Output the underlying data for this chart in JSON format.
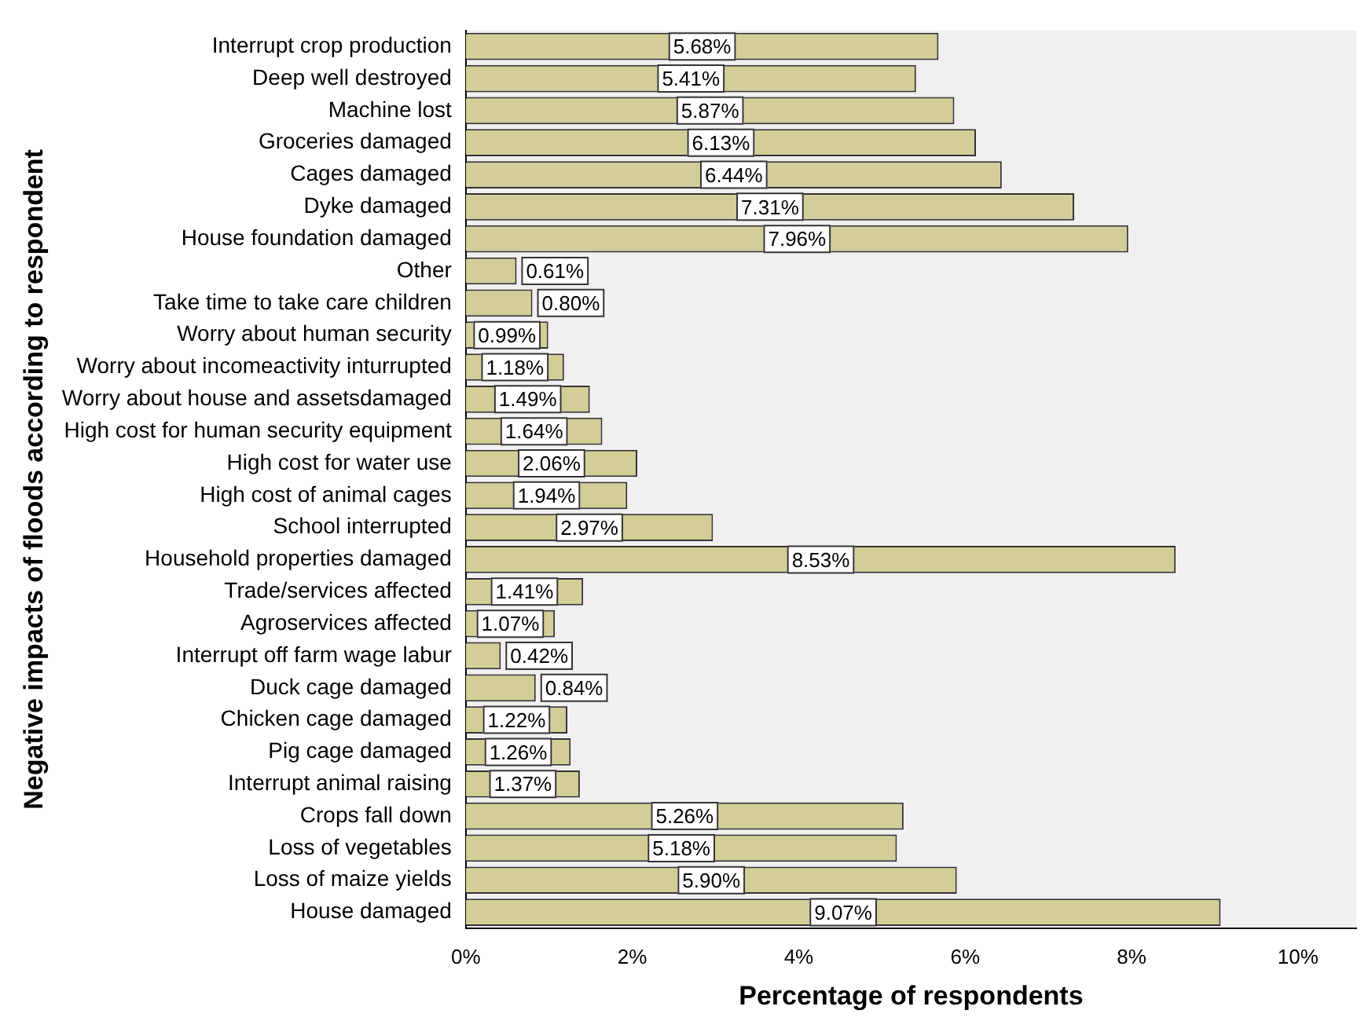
{
  "chart_data": {
    "type": "bar",
    "orientation": "horizontal",
    "xlabel": "Percentage of respondents",
    "ylabel": "Negative impacts of floods according to respondent",
    "categories": [
      "Interrupt crop production",
      "Deep well destroyed",
      "Machine lost",
      "Groceries damaged",
      "Cages damaged",
      "Dyke damaged",
      "House foundation damaged",
      "Other",
      "Take time to take care children",
      "Worry about human security",
      "Worry about incomeactivity inturrupted",
      "Worry about house and assetsdamaged",
      "High cost for human security equipment",
      "High cost for water use",
      "High cost of animal cages",
      "School interrupted",
      "Household properties damaged",
      "Trade/services affected",
      "Agroservices affected",
      "Interrupt off farm wage labur",
      "Duck cage damaged",
      "Chicken cage damaged",
      "Pig cage damaged",
      "Interrupt animal raising",
      "Crops fall down",
      "Loss of vegetables",
      "Loss of maize yields",
      "House damaged"
    ],
    "values": [
      5.68,
      5.41,
      5.87,
      6.13,
      6.44,
      7.31,
      7.96,
      0.61,
      0.8,
      0.99,
      1.18,
      1.49,
      1.64,
      2.06,
      1.94,
      2.97,
      8.53,
      1.41,
      1.07,
      0.42,
      0.84,
      1.22,
      1.26,
      1.37,
      5.26,
      5.18,
      5.9,
      9.07
    ],
    "value_labels": [
      "5.68%",
      "5.41%",
      "5.87%",
      "6.13%",
      "6.44%",
      "7.31%",
      "7.96%",
      "0.61%",
      "0.80%",
      "0.99%",
      "1.18%",
      "1.49%",
      "1.64%",
      "2.06%",
      "1.94%",
      "2.97%",
      "8.53%",
      "1.41%",
      "1.07%",
      "0.42%",
      "0.84%",
      "1.22%",
      "1.26%",
      "1.37%",
      "5.26%",
      "5.18%",
      "5.90%",
      "9.07%"
    ],
    "color": "#d3ce97",
    "xlim": [
      0,
      10.7
    ],
    "xticks": [
      {
        "value": 0,
        "label": "0%"
      },
      {
        "value": 2,
        "label": "2%"
      },
      {
        "value": 4,
        "label": "4%"
      },
      {
        "value": 6,
        "label": "6%"
      },
      {
        "value": 8,
        "label": "8%"
      },
      {
        "value": 10,
        "label": "10%"
      }
    ],
    "grid": false,
    "legend": false
  }
}
